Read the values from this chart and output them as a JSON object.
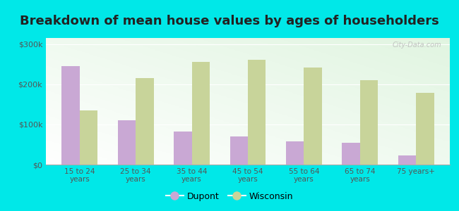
{
  "title": "Breakdown of mean house values by ages of householders",
  "categories": [
    "15 to 24\nyears",
    "25 to 34\nyears",
    "35 to 44\nyears",
    "45 to 54\nyears",
    "55 to 64\nyears",
    "65 to 74\nyears",
    "75 years+"
  ],
  "dupont_values": [
    245000,
    110000,
    82000,
    70000,
    57000,
    55000,
    22000
  ],
  "wisconsin_values": [
    135000,
    215000,
    255000,
    260000,
    242000,
    210000,
    178000
  ],
  "dupont_color": "#c9a8d4",
  "wisconsin_color": "#c8d49a",
  "background_color": "#00e8e8",
  "yticks": [
    0,
    100000,
    200000,
    300000
  ],
  "ytick_labels": [
    "$0",
    "$100k",
    "$200k",
    "$300k"
  ],
  "ylim": [
    0,
    315000
  ],
  "legend_dupont": "Dupont",
  "legend_wisconsin": "Wisconsin",
  "title_fontsize": 13,
  "watermark": "City-Data.com"
}
